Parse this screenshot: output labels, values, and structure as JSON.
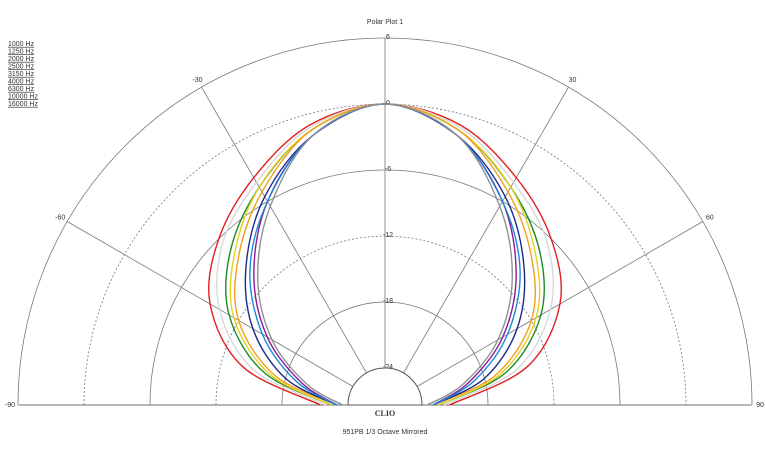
{
  "chart_data": {
    "type": "polar",
    "title": "Polar Plot 1",
    "brand": "CLIO",
    "subtitle": "951PB  1/3 Octave  Mirrored",
    "x": [
      -90,
      -75,
      -60,
      -45,
      -30,
      -15,
      0,
      15,
      30,
      45,
      60,
      75,
      90
    ],
    "rlim": [
      -24,
      6
    ],
    "rticks": [
      6,
      0,
      -6,
      -12,
      -18,
      -24
    ],
    "thetalim": [
      -90,
      90
    ],
    "thetaticks": [
      -90,
      -60,
      -30,
      30,
      60,
      90
    ],
    "grid": true,
    "legend": "top-left",
    "series": [
      {
        "name": "1000 Hz",
        "color": "#e02020",
        "values": [
          -21.5,
          -14,
          -9,
          -6,
          -3.5,
          -1,
          0,
          -1,
          -3.5,
          -6,
          -9,
          -14,
          -21.5
        ]
      },
      {
        "name": "1250 Hz",
        "color": "#d8d8d8",
        "values": [
          -22,
          -15,
          -10,
          -6.5,
          -4,
          -1.2,
          0,
          -1.2,
          -4,
          -6.5,
          -10,
          -15,
          -22
        ]
      },
      {
        "name": "2000 Hz",
        "color": "#1a8a2a",
        "values": [
          -22.5,
          -16,
          -11,
          -7.5,
          -4.5,
          -1.5,
          0,
          -1.5,
          -4.5,
          -7.5,
          -11,
          -16,
          -22.5
        ]
      },
      {
        "name": "2500 Hz",
        "color": "#e8d020",
        "values": [
          -22.5,
          -16.5,
          -11.5,
          -8,
          -4.5,
          -1.5,
          0,
          -1.5,
          -4.5,
          -8,
          -11.5,
          -16.5,
          -22.5
        ]
      },
      {
        "name": "3150 Hz",
        "color": "#f0a020",
        "values": [
          -23,
          -17,
          -12,
          -8.5,
          -5,
          -1.5,
          0,
          -1.5,
          -5,
          -8.5,
          -12,
          -17,
          -23
        ]
      },
      {
        "name": "4000 Hz",
        "color": "#1a2a8a",
        "values": [
          -23,
          -18,
          -13.5,
          -9.5,
          -5.5,
          -2,
          0,
          -2,
          -5.5,
          -9.5,
          -13.5,
          -18,
          -23
        ]
      },
      {
        "name": "6300 Hz",
        "color": "#8a1a9a",
        "values": [
          -23,
          -19.5,
          -15,
          -10.5,
          -6,
          -2,
          0,
          -2,
          -6,
          -10.5,
          -15,
          -19.5,
          -23
        ]
      },
      {
        "name": "10000 Hz",
        "color": "#1a8ad8",
        "values": [
          -23,
          -19,
          -14.5,
          -10,
          -6,
          -2,
          0,
          -2,
          -6,
          -10,
          -14.5,
          -19,
          -23
        ]
      },
      {
        "name": "16000 Hz",
        "color": "#909090",
        "values": [
          -23.5,
          -20,
          -15.5,
          -11,
          -6.5,
          -2,
          0,
          -2,
          -6.5,
          -11,
          -15.5,
          -20,
          -23.5
        ]
      }
    ]
  }
}
